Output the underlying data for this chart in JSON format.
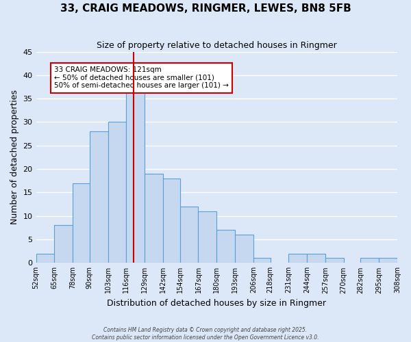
{
  "title": "33, CRAIG MEADOWS, RINGMER, LEWES, BN8 5FB",
  "subtitle": "Size of property relative to detached houses in Ringmer",
  "xlabel": "Distribution of detached houses by size in Ringmer",
  "ylabel": "Number of detached properties",
  "bar_color": "#c5d8f0",
  "bar_edge_color": "#5a9fd4",
  "background_color": "#dce8f8",
  "grid_color": "#ffffff",
  "vline_x": 121,
  "vline_color": "#cc0000",
  "bin_edges": [
    52,
    65,
    78,
    90,
    103,
    116,
    129,
    142,
    154,
    167,
    180,
    193,
    206,
    218,
    231,
    244,
    257,
    270,
    282,
    295,
    308
  ],
  "bin_labels": [
    "52sqm",
    "65sqm",
    "78sqm",
    "90sqm",
    "103sqm",
    "116sqm",
    "129sqm",
    "142sqm",
    "154sqm",
    "167sqm",
    "180sqm",
    "193sqm",
    "206sqm",
    "218sqm",
    "231sqm",
    "244sqm",
    "257sqm",
    "270sqm",
    "282sqm",
    "295sqm",
    "308sqm"
  ],
  "counts": [
    2,
    8,
    17,
    28,
    30,
    37,
    19,
    18,
    12,
    11,
    7,
    6,
    1,
    0,
    2,
    2,
    1,
    0,
    1,
    1
  ],
  "ylim": [
    0,
    45
  ],
  "yticks": [
    0,
    5,
    10,
    15,
    20,
    25,
    30,
    35,
    40,
    45
  ],
  "annotation_text": "33 CRAIG MEADOWS: 121sqm\n← 50% of detached houses are smaller (101)\n50% of semi-detached houses are larger (101) →",
  "footer1": "Contains HM Land Registry data © Crown copyright and database right 2025.",
  "footer2": "Contains public sector information licensed under the Open Government Licence v3.0."
}
